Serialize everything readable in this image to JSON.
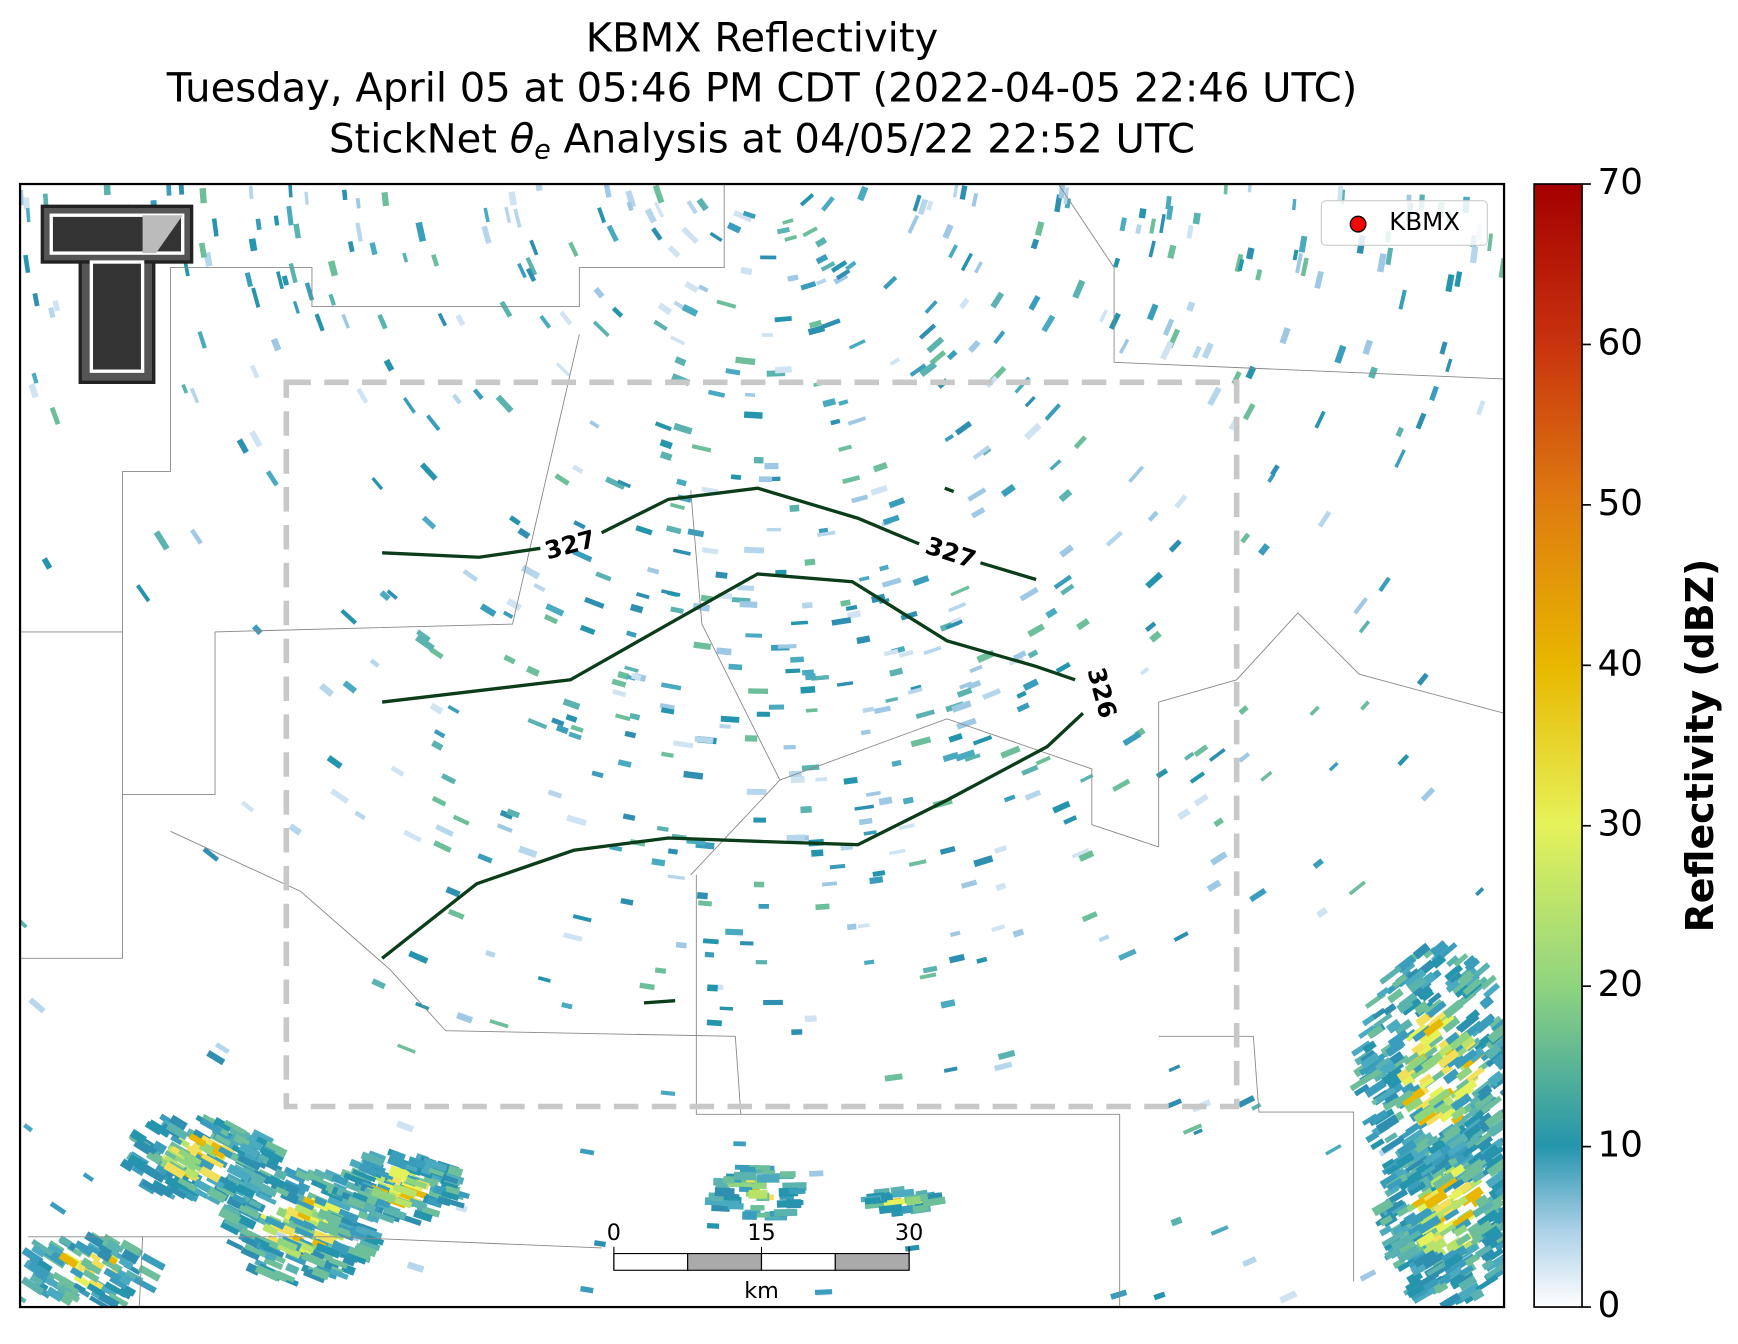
{
  "title": {
    "line1": "KBMX Reflectivity",
    "line2": "Tuesday, April 05 at 05:46 PM CDT (2022-04-05 22:46 UTC)",
    "line3": {
      "before": "StickNet ",
      "symbol": "θ",
      "subscript": "e",
      "after": " Analysis at 04/05/22 22:52 UTC"
    }
  },
  "legend": {
    "label": "KBMX",
    "color": "#ff0000"
  },
  "contours": [
    {
      "value": 327
    },
    {
      "value": 327
    },
    {
      "value": 326
    }
  ],
  "colorbar": {
    "label": "Reflectivity (dBZ)",
    "lim": [
      0,
      70
    ],
    "ticks": [
      0,
      10,
      20,
      30,
      40,
      50,
      60,
      70
    ]
  },
  "scale_bar": {
    "lim": [
      0,
      30
    ],
    "ticks": [
      0,
      15,
      30
    ],
    "unit": "km"
  }
}
